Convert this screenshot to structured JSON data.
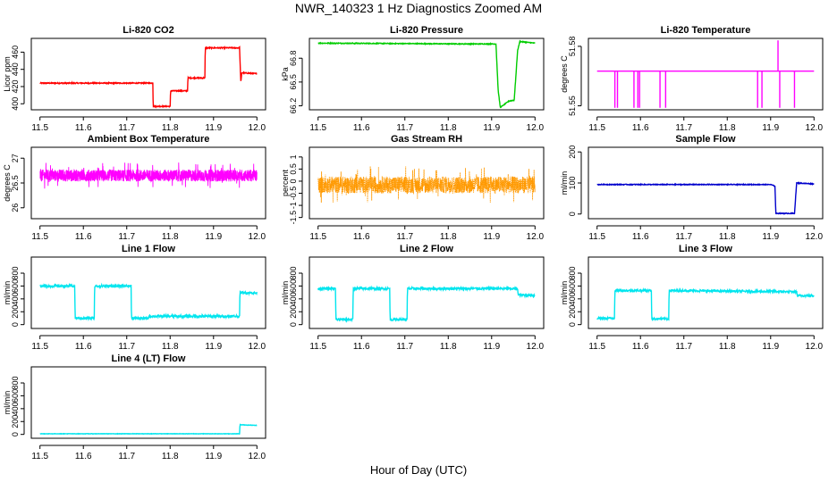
{
  "figure": {
    "title": "NWR_140323  1 Hz Diagnostics Zoomed AM",
    "xlabel": "Hour of Day (UTC)"
  },
  "chart_data": [
    {
      "type": "line",
      "title": "Li-820 CO2",
      "ylabel": "Licor ppm",
      "color": "#ff0000",
      "xlim": [
        11.48,
        12.02
      ],
      "xticks": [
        11.5,
        11.6,
        11.7,
        11.8,
        11.9,
        12.0
      ],
      "ylim": [
        393,
        476
      ],
      "yticks": [
        400,
        420,
        440,
        460
      ],
      "noise": 0.6,
      "dense": false,
      "series": [
        {
          "x": [
            11.5,
            11.76,
            11.761,
            11.8,
            11.801,
            11.84,
            11.841,
            11.88,
            11.881,
            11.96,
            11.963,
            11.965,
            12.0
          ],
          "y": [
            424,
            424,
            397,
            397,
            415,
            415,
            430,
            430,
            465,
            465,
            424,
            436,
            435
          ]
        }
      ]
    },
    {
      "type": "line",
      "title": "Li-820 Pressure",
      "ylabel": "kPa",
      "color": "#00cc00",
      "xlim": [
        11.48,
        12.02
      ],
      "xticks": [
        11.5,
        11.6,
        11.7,
        11.8,
        11.9,
        12.0
      ],
      "ylim": [
        66.15,
        67.05
      ],
      "yticks": [
        66.2,
        66.5,
        66.8
      ],
      "noise": 0.005,
      "dense": false,
      "series": [
        {
          "x": [
            11.5,
            11.85,
            11.91,
            11.915,
            11.92,
            11.94,
            11.95,
            11.952,
            11.96,
            11.965,
            12.0
          ],
          "y": [
            66.99,
            66.98,
            66.98,
            66.4,
            66.18,
            66.26,
            66.27,
            66.27,
            66.9,
            67.01,
            66.99
          ]
        }
      ]
    },
    {
      "type": "line",
      "title": "Li-820 Temperature",
      "ylabel": "degrees C",
      "color": "#ff00ff",
      "xlim": [
        11.48,
        12.02
      ],
      "xticks": [
        11.5,
        11.6,
        11.7,
        11.8,
        11.9,
        12.0
      ],
      "ylim": [
        51.548,
        51.584
      ],
      "yticks": [
        51.55,
        51.58
      ],
      "noise": 0,
      "dense": false,
      "spikes": "temp",
      "series": [
        {
          "x": [
            11.5,
            12.0
          ],
          "y": [
            51.5675,
            51.5675
          ]
        }
      ]
    },
    {
      "type": "line",
      "title": "Ambient Box Temperature",
      "ylabel": "degrees C",
      "color": "#ff00ff",
      "xlim": [
        11.48,
        12.02
      ],
      "xticks": [
        11.5,
        11.6,
        11.7,
        11.8,
        11.9,
        12.0
      ],
      "ylim": [
        25.78,
        27.22
      ],
      "yticks": [
        26.0,
        26.5,
        27.0
      ],
      "noise": 0.12,
      "dense": true,
      "series": [
        {
          "x": [
            11.5,
            12.0
          ],
          "y": [
            26.65,
            26.65
          ]
        }
      ]
    },
    {
      "type": "line",
      "title": "Gas Stream RH",
      "ylabel": "percent",
      "color": "#ff9900",
      "xlim": [
        11.48,
        12.02
      ],
      "xticks": [
        11.5,
        11.6,
        11.7,
        11.8,
        11.9,
        12.0
      ],
      "ylim": [
        -1.55,
        1.4
      ],
      "yticks": [
        -1.5,
        -1.0,
        -0.5,
        0.0,
        0.5,
        1.0
      ],
      "noise": 0.35,
      "dense": true,
      "dotted": true,
      "series": [
        {
          "x": [
            11.5,
            12.0
          ],
          "y": [
            -0.15,
            -0.15
          ]
        }
      ]
    },
    {
      "type": "line",
      "title": "Sample Flow",
      "ylabel": "ml/min",
      "color": "#0000cc",
      "xlim": [
        11.48,
        12.02
      ],
      "xticks": [
        11.5,
        11.6,
        11.7,
        11.8,
        11.9,
        12.0
      ],
      "ylim": [
        -15,
        215
      ],
      "yticks": [
        0,
        100,
        200
      ],
      "noise": 1.2,
      "dense": false,
      "series": [
        {
          "x": [
            11.5,
            11.9,
            11.91,
            11.912,
            11.955,
            11.96,
            12.0
          ],
          "y": [
            95,
            95,
            90,
            2,
            2,
            100,
            97
          ]
        }
      ]
    },
    {
      "type": "line",
      "title": "Line 1 Flow",
      "ylabel": "ml/min",
      "color": "#00e5ee",
      "xlim": [
        11.48,
        12.02
      ],
      "xticks": [
        11.5,
        11.6,
        11.7,
        11.8,
        11.9,
        12.0
      ],
      "ylim": [
        -60,
        1050
      ],
      "yticks": [
        0,
        200,
        400,
        600,
        800
      ],
      "noise": 18,
      "dense": false,
      "series": [
        {
          "x": [
            11.5,
            11.58,
            11.581,
            11.625,
            11.626,
            11.71,
            11.711,
            11.75,
            11.751,
            11.96,
            11.961,
            12.0
          ],
          "y": [
            600,
            600,
            100,
            100,
            600,
            600,
            100,
            100,
            130,
            130,
            500,
            490
          ]
        }
      ]
    },
    {
      "type": "line",
      "title": "Line 2 Flow",
      "ylabel": "ml/min",
      "color": "#00e5ee",
      "xlim": [
        11.48,
        12.02
      ],
      "xticks": [
        11.5,
        11.6,
        11.7,
        11.8,
        11.9,
        12.0
      ],
      "ylim": [
        -60,
        1050
      ],
      "yticks": [
        0,
        200,
        400,
        600,
        800
      ],
      "noise": 18,
      "dense": false,
      "series": [
        {
          "x": [
            11.5,
            11.54,
            11.541,
            11.58,
            11.581,
            11.665,
            11.666,
            11.705,
            11.706,
            11.96,
            11.961,
            12.0
          ],
          "y": [
            560,
            560,
            80,
            80,
            560,
            560,
            80,
            80,
            560,
            560,
            460,
            455
          ]
        }
      ]
    },
    {
      "type": "line",
      "title": "Line 3 Flow",
      "ylabel": "ml/min",
      "color": "#00e5ee",
      "xlim": [
        11.48,
        12.02
      ],
      "xticks": [
        11.5,
        11.6,
        11.7,
        11.8,
        11.9,
        12.0
      ],
      "ylim": [
        -60,
        1050
      ],
      "yticks": [
        0,
        200,
        400,
        600,
        800
      ],
      "noise": 15,
      "dense": false,
      "series": [
        {
          "x": [
            11.5,
            11.54,
            11.541,
            11.625,
            11.626,
            11.665,
            11.666,
            11.96,
            11.961,
            12.0
          ],
          "y": [
            100,
            100,
            530,
            530,
            90,
            90,
            530,
            510,
            450,
            450
          ]
        }
      ]
    },
    {
      "type": "line",
      "title": "Line 4 (LT) Flow",
      "ylabel": "ml/min",
      "color": "#00e5ee",
      "xlim": [
        11.48,
        12.02
      ],
      "xticks": [
        11.5,
        11.6,
        11.7,
        11.8,
        11.9,
        12.0
      ],
      "ylim": [
        -60,
        1050
      ],
      "yticks": [
        0,
        200,
        400,
        600,
        800
      ],
      "noise": 3,
      "dense": false,
      "series": [
        {
          "x": [
            11.5,
            11.96,
            11.961,
            12.0
          ],
          "y": [
            10,
            10,
            150,
            140
          ]
        }
      ]
    }
  ]
}
